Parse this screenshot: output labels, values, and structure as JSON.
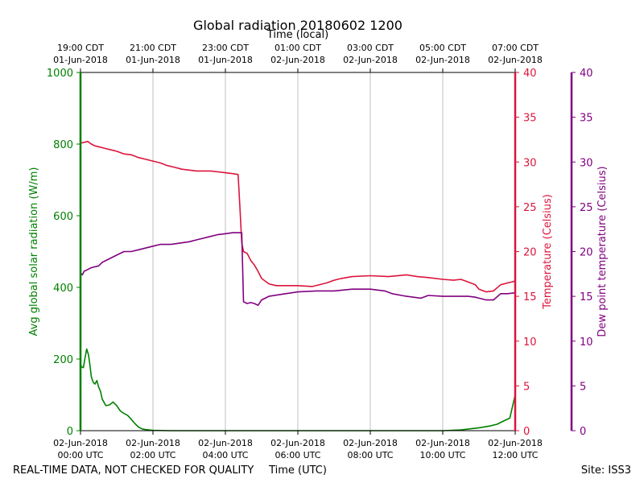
{
  "chart_data": {
    "type": "line",
    "title": "Global radiation 20180602 1200",
    "top_axis_label": "Time (local)",
    "xlabel": "Time (UTC)",
    "footer_left": "REAL-TIME DATA, NOT CHECKED FOR QUALITY",
    "footer_right": "Site: ISS3",
    "x_range_hours_utc": [
      0,
      12
    ],
    "bottom_ticks": [
      {
        "hour": 0,
        "line1": "02-Jun-2018",
        "line2": "00:00 UTC"
      },
      {
        "hour": 2,
        "line1": "02-Jun-2018",
        "line2": "02:00 UTC"
      },
      {
        "hour": 4,
        "line1": "02-Jun-2018",
        "line2": "04:00 UTC"
      },
      {
        "hour": 6,
        "line1": "02-Jun-2018",
        "line2": "06:00 UTC"
      },
      {
        "hour": 8,
        "line1": "02-Jun-2018",
        "line2": "08:00 UTC"
      },
      {
        "hour": 10,
        "line1": "02-Jun-2018",
        "line2": "10:00 UTC"
      },
      {
        "hour": 12,
        "line1": "02-Jun-2018",
        "line2": "12:00 UTC"
      }
    ],
    "top_ticks": [
      {
        "hour": 0,
        "line1": "19:00 CDT",
        "line2": "01-Jun-2018"
      },
      {
        "hour": 2,
        "line1": "21:00 CDT",
        "line2": "01-Jun-2018"
      },
      {
        "hour": 4,
        "line1": "23:00 CDT",
        "line2": "01-Jun-2018"
      },
      {
        "hour": 6,
        "line1": "01:00 CDT",
        "line2": "02-Jun-2018"
      },
      {
        "hour": 8,
        "line1": "03:00 CDT",
        "line2": "02-Jun-2018"
      },
      {
        "hour": 10,
        "line1": "05:00 CDT",
        "line2": "02-Jun-2018"
      },
      {
        "hour": 12,
        "line1": "07:00 CDT",
        "line2": "02-Jun-2018"
      }
    ],
    "grid_x": true,
    "axes": {
      "radiation": {
        "label": "Avg global solar radiation (W/m)",
        "ylim": [
          0,
          1000
        ],
        "ticks": [
          0,
          200,
          400,
          600,
          800,
          1000
        ],
        "color": "#008000"
      },
      "temperature": {
        "label": "Temperature (Celsius)",
        "ylim": [
          0,
          40
        ],
        "ticks": [
          0,
          5,
          10,
          15,
          20,
          25,
          30,
          35,
          40
        ],
        "color": "#dc143c"
      },
      "dewpoint": {
        "label": "Dew point temperature (Celsius)",
        "ylim": [
          0,
          40
        ],
        "ticks": [
          0,
          5,
          10,
          15,
          20,
          25,
          30,
          35,
          40
        ],
        "color": "#800080"
      }
    },
    "series": [
      {
        "name": "Avg global solar radiation",
        "axis": "radiation",
        "color": "#008000",
        "x_hours": [
          0,
          0.03,
          0.08,
          0.12,
          0.17,
          0.22,
          0.25,
          0.3,
          0.35,
          0.4,
          0.45,
          0.5,
          0.55,
          0.6,
          0.7,
          0.8,
          0.9,
          1.0,
          1.1,
          1.2,
          1.3,
          1.4,
          1.5,
          1.6,
          1.7,
          1.8,
          2.0,
          2.5,
          3.0,
          4.0,
          6.0,
          8.0,
          10.0,
          10.5,
          11.0,
          11.3,
          11.5,
          11.7,
          11.85,
          12.0
        ],
        "values": [
          185,
          178,
          176,
          200,
          228,
          212,
          190,
          150,
          135,
          130,
          140,
          122,
          110,
          88,
          70,
          72,
          80,
          70,
          55,
          48,
          43,
          32,
          20,
          10,
          5,
          3,
          1,
          0,
          0,
          0,
          0,
          0,
          0,
          2,
          8,
          13,
          18,
          28,
          35,
          100
        ]
      },
      {
        "name": "Temperature",
        "axis": "temperature",
        "color": "#dc143c",
        "x_hours": [
          0,
          0.1,
          0.2,
          0.3,
          0.4,
          0.5,
          0.7,
          0.9,
          1.0,
          1.2,
          1.4,
          1.6,
          1.8,
          2.0,
          2.2,
          2.4,
          2.6,
          2.8,
          3.0,
          3.2,
          3.4,
          3.6,
          3.8,
          4.0,
          4.2,
          4.35,
          4.4,
          4.45,
          4.5,
          4.6,
          4.7,
          4.8,
          4.9,
          5.0,
          5.2,
          5.4,
          5.6,
          6.0,
          6.4,
          6.8,
          7.0,
          7.2,
          7.5,
          8.0,
          8.5,
          9.0,
          9.3,
          9.6,
          10.0,
          10.3,
          10.5,
          10.7,
          10.9,
          11.0,
          11.2,
          11.4,
          11.6,
          11.8,
          12.0
        ]
      },
      {
        "name": "Dew point temperature",
        "axis": "dewpoint",
        "color": "#800080",
        "x_hours": [
          0,
          0.05,
          0.1,
          0.2,
          0.3,
          0.5,
          0.6,
          0.8,
          1.0,
          1.2,
          1.4,
          1.6,
          2.0,
          2.2,
          2.5,
          3.0,
          3.2,
          3.5,
          3.8,
          4.0,
          4.2,
          4.4,
          4.45,
          4.5,
          4.6,
          4.7,
          4.8,
          4.9,
          5.0,
          5.2,
          5.5,
          6.0,
          6.5,
          7.0,
          7.5,
          8.0,
          8.2,
          8.4,
          8.6,
          9.0,
          9.4,
          9.6,
          10.0,
          10.5,
          10.7,
          10.9,
          11.0,
          11.2,
          11.4,
          11.6,
          11.8,
          12.0
        ]
      }
    ]
  }
}
